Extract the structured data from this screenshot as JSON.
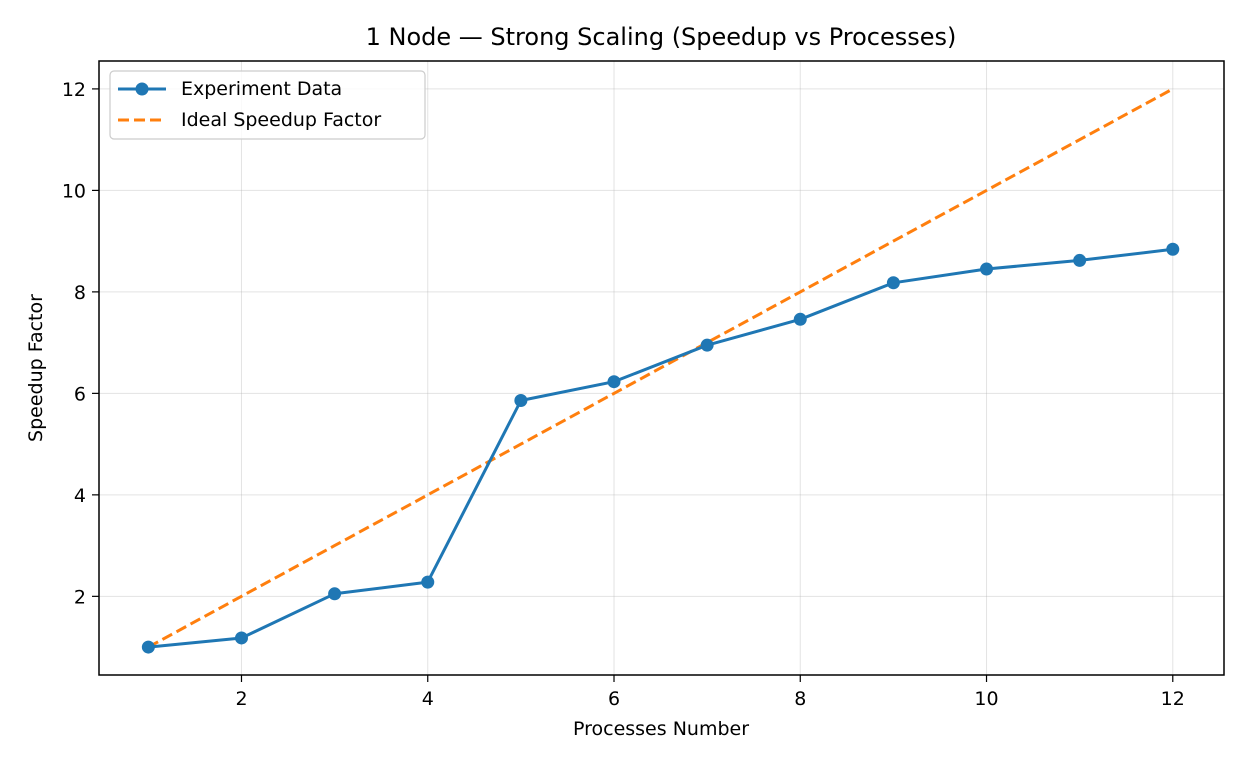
{
  "chart_data": {
    "type": "line",
    "title": "1 Node — Strong Scaling (Speedup vs Processes)",
    "xlabel": "Processes Number",
    "ylabel": "Speedup Factor",
    "xlim": [
      0.47,
      12.55
    ],
    "ylim": [
      0.45,
      12.55
    ],
    "xticks": [
      2,
      4,
      6,
      8,
      10,
      12
    ],
    "yticks": [
      2,
      4,
      6,
      8,
      10,
      12
    ],
    "grid": true,
    "legend": "upper left",
    "series": [
      {
        "name": "Experiment Data",
        "color": "#1f77b4",
        "style": "solid",
        "marker": "circle",
        "x": [
          1,
          2,
          3,
          4,
          5,
          6,
          7,
          8,
          9,
          10,
          11,
          12
        ],
        "y": [
          1.0,
          1.18,
          2.05,
          2.28,
          5.86,
          6.23,
          6.95,
          7.46,
          8.18,
          8.45,
          8.62,
          8.84
        ]
      },
      {
        "name": "Ideal Speedup Factor",
        "color": "#ff7f0e",
        "style": "dashed",
        "marker": "none",
        "x": [
          1,
          2,
          3,
          4,
          5,
          6,
          7,
          8,
          9,
          10,
          11,
          12
        ],
        "y": [
          1,
          2,
          3,
          4,
          5,
          6,
          7,
          8,
          9,
          10,
          11,
          12
        ]
      }
    ]
  }
}
